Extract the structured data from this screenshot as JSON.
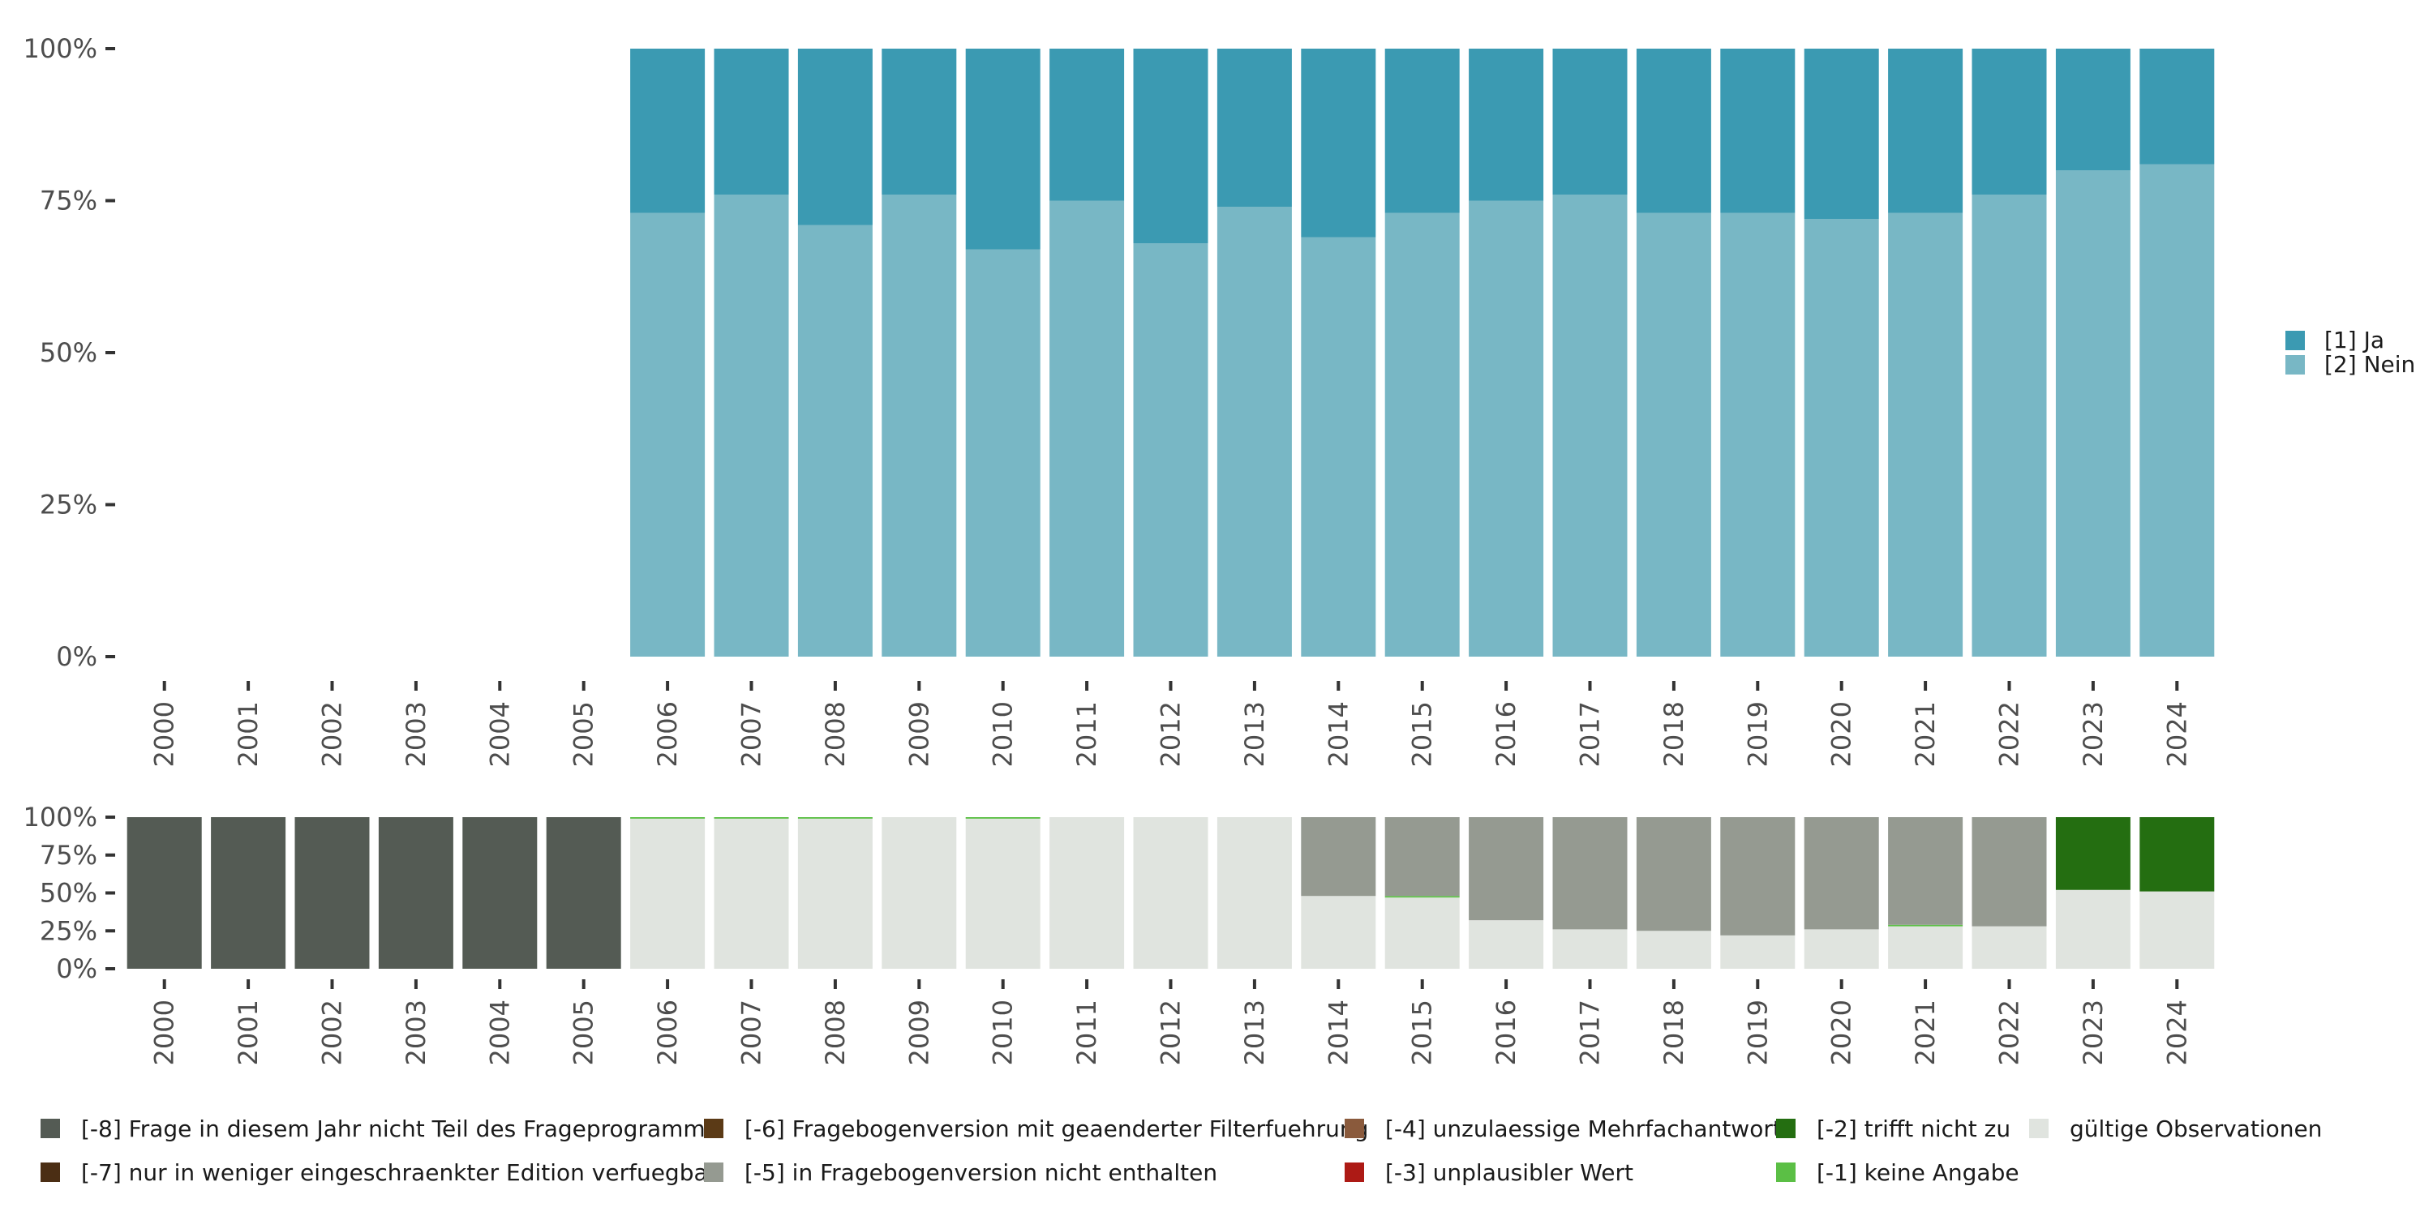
{
  "chart_data": [
    {
      "type": "bar",
      "stacked": true,
      "categories": [
        "2000",
        "2001",
        "2002",
        "2003",
        "2004",
        "2005",
        "2006",
        "2007",
        "2008",
        "2009",
        "2010",
        "2011",
        "2012",
        "2013",
        "2014",
        "2015",
        "2016",
        "2017",
        "2018",
        "2019",
        "2020",
        "2021",
        "2022",
        "2023",
        "2024"
      ],
      "ylim": [
        0,
        1
      ],
      "y_ticks": [
        "0%",
        "25%",
        "50%",
        "75%",
        "100%"
      ],
      "y_tick_values": [
        0,
        0.25,
        0.5,
        0.75,
        1
      ],
      "legend_position": "right",
      "series": [
        {
          "name": "[2] Nein",
          "color": "#78b7c5",
          "values": [
            null,
            null,
            null,
            null,
            null,
            null,
            0.73,
            0.76,
            0.71,
            0.76,
            0.67,
            0.75,
            0.68,
            0.74,
            0.69,
            0.73,
            0.75,
            0.76,
            0.73,
            0.73,
            0.72,
            0.73,
            0.76,
            0.8,
            0.81
          ]
        },
        {
          "name": "[1] Ja",
          "color": "#3b9ab2",
          "values": [
            null,
            null,
            null,
            null,
            null,
            null,
            0.27,
            0.24,
            0.29,
            0.24,
            0.33,
            0.25,
            0.32,
            0.26,
            0.31,
            0.27,
            0.25,
            0.24,
            0.27,
            0.27,
            0.28,
            0.27,
            0.24,
            0.2,
            0.19
          ]
        }
      ],
      "legend": [
        "[1] Ja",
        "[2] Nein"
      ]
    },
    {
      "type": "bar",
      "stacked": true,
      "categories": [
        "2000",
        "2001",
        "2002",
        "2003",
        "2004",
        "2005",
        "2006",
        "2007",
        "2008",
        "2009",
        "2010",
        "2011",
        "2012",
        "2013",
        "2014",
        "2015",
        "2016",
        "2017",
        "2018",
        "2019",
        "2020",
        "2021",
        "2022",
        "2023",
        "2024"
      ],
      "ylim": [
        0,
        1
      ],
      "y_ticks": [
        "0%",
        "25%",
        "50%",
        "75%",
        "100%"
      ],
      "y_tick_values": [
        0,
        0.25,
        0.5,
        0.75,
        1
      ],
      "legend_position": "bottom",
      "series": [
        {
          "name": "gültige Observationen",
          "color": "#e0e4df",
          "values": [
            0,
            0,
            0,
            0,
            0,
            0,
            0.99,
            0.99,
            0.99,
            1.0,
            0.99,
            1.0,
            1.0,
            1.0,
            0.48,
            0.47,
            0.32,
            0.26,
            0.25,
            0.22,
            0.26,
            0.28,
            0.28,
            0.52,
            0.51
          ]
        },
        {
          "name": "[-1] keine Angabe",
          "color": "#5bbf45",
          "values": [
            0,
            0,
            0,
            0,
            0,
            0,
            0.01,
            0.01,
            0.01,
            0,
            0.01,
            0,
            0,
            0,
            0,
            0.01,
            0,
            0,
            0,
            0,
            0,
            0.01,
            0,
            0,
            0
          ]
        },
        {
          "name": "[-5] in Fragebogenversion nicht enthalten",
          "color": "#959a91",
          "values": [
            0,
            0,
            0,
            0,
            0,
            0,
            0,
            0,
            0,
            0,
            0,
            0,
            0,
            0,
            0.52,
            0.52,
            0.68,
            0.74,
            0.75,
            0.78,
            0.74,
            0.71,
            0.72,
            0,
            0
          ]
        },
        {
          "name": "[-2] trifft nicht zu",
          "color": "#246e11",
          "values": [
            0,
            0,
            0,
            0,
            0,
            0,
            0,
            0,
            0,
            0,
            0,
            0,
            0,
            0,
            0,
            0,
            0,
            0,
            0,
            0,
            0,
            0,
            0,
            0.48,
            0.49
          ]
        },
        {
          "name": "[-8] Frage in diesem Jahr nicht Teil des Frageprogramms",
          "color": "#545b54",
          "values": [
            1,
            1,
            1,
            1,
            1,
            1,
            0,
            0,
            0,
            0,
            0,
            0,
            0,
            0,
            0,
            0,
            0,
            0,
            0,
            0,
            0,
            0,
            0,
            0,
            0
          ]
        }
      ]
    }
  ],
  "bottom_legend": [
    {
      "label": "[-8] Frage in diesem Jahr nicht Teil des Frageprogramms",
      "color": "#545b54"
    },
    {
      "label": "[-7] nur in weniger eingeschraenkter Edition verfuegbar",
      "color": "#4b2e14"
    },
    {
      "label": "[-6] Fragebogenversion mit geaenderter Filterfuehrung",
      "color": "#5b3a16"
    },
    {
      "label": "[-5] in Fragebogenversion nicht enthalten",
      "color": "#959a91"
    },
    {
      "label": "[-4] unzulaessige Mehrfachantwort",
      "color": "#8a5a3c"
    },
    {
      "label": "[-3] unplausibler Wert",
      "color": "#ad1a15"
    },
    {
      "label": "[-2] trifft nicht zu",
      "color": "#246e11"
    },
    {
      "label": "[-1] keine Angabe",
      "color": "#5bbf45"
    },
    {
      "label": "gültige Observationen",
      "color": "#e0e4df"
    }
  ]
}
